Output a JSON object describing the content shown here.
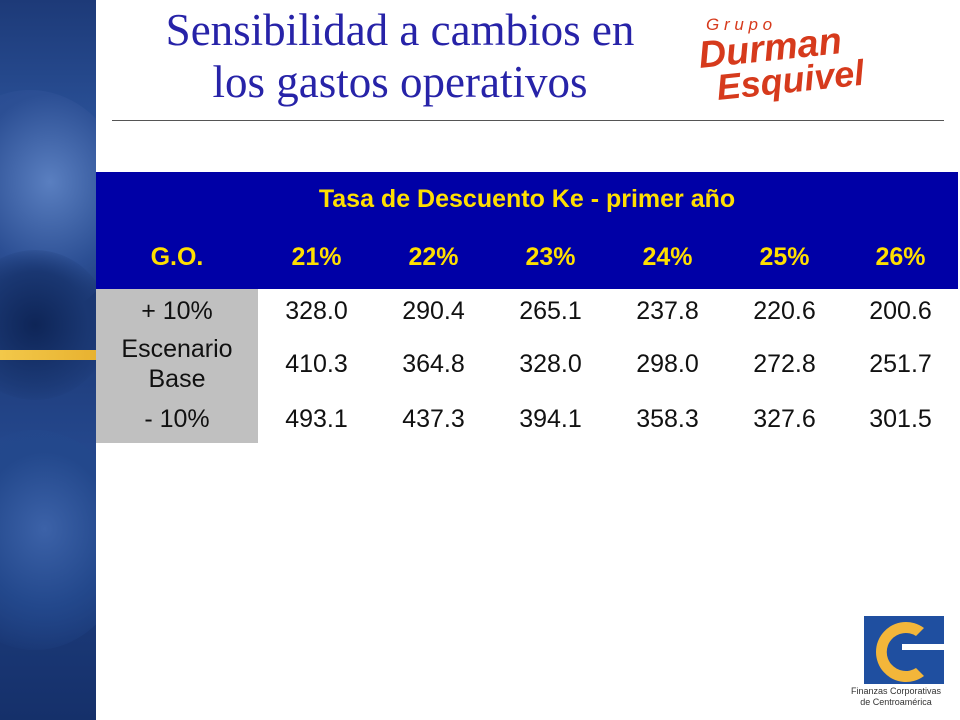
{
  "slide": {
    "title_line1": "Sensibilidad a cambios en",
    "title_line2": "los gastos operativos"
  },
  "logo": {
    "grupo": "G r u p o",
    "line1": "Durman",
    "line2": "Esquivel",
    "color": "#d63a1c"
  },
  "table": {
    "caption": "Tasa de Descuento Ke - primer año",
    "row_header_label": "G.O.",
    "columns": [
      "21%",
      "22%",
      "23%",
      "24%",
      "25%",
      "26%"
    ],
    "rows": [
      {
        "label": "+ 10%",
        "values": [
          "328.0",
          "290.4",
          "265.1",
          "237.8",
          "220.6",
          "200.6"
        ]
      },
      {
        "label_line1": "Escenario",
        "label_line2": "Base",
        "values": [
          "410.3",
          "364.8",
          "328.0",
          "298.0",
          "272.8",
          "251.7"
        ]
      },
      {
        "label": "- 10%",
        "values": [
          "493.1",
          "437.3",
          "394.1",
          "358.3",
          "327.6",
          "301.5"
        ]
      }
    ]
  },
  "footer_logo": {
    "line1": "Finanzas Corporativas",
    "line2": "de Centroamérica"
  },
  "colors": {
    "title": "#2723a8",
    "table_header_bg": "#0000a6",
    "table_header_text": "#ffdf00",
    "row_label_bg": "#c0c0c0"
  }
}
